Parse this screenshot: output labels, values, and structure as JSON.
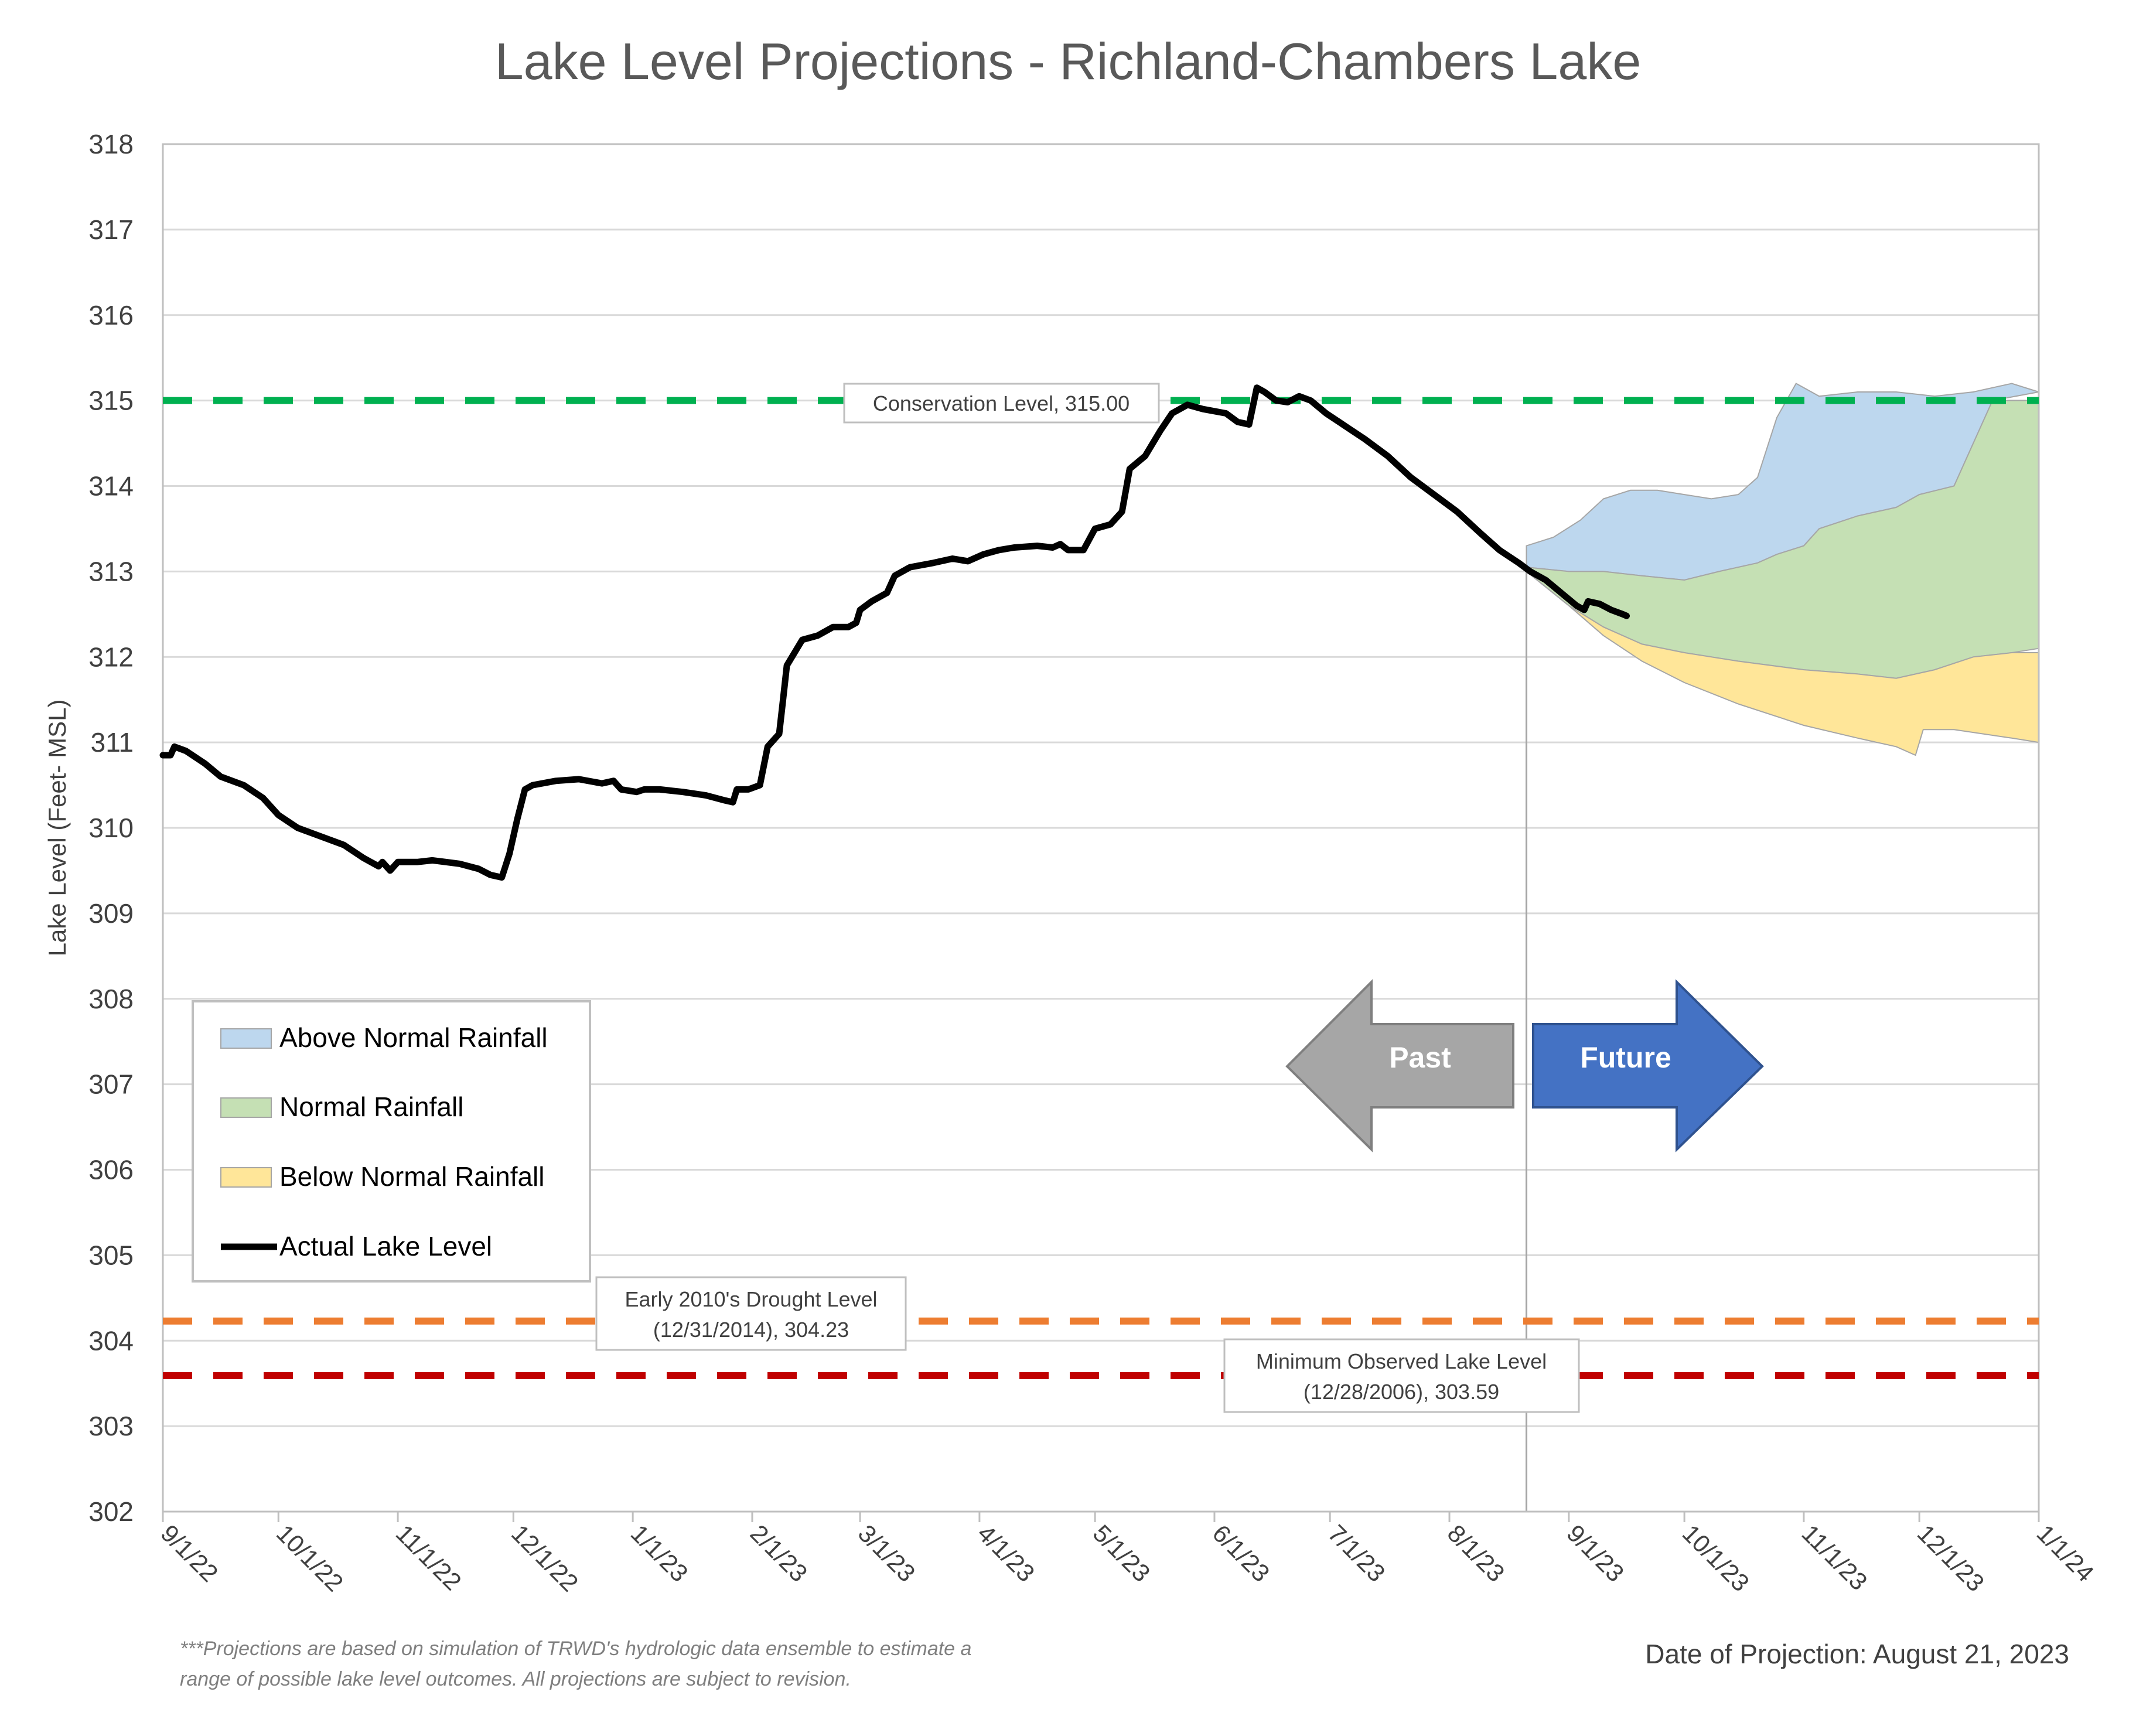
{
  "chart_data": {
    "type": "area",
    "title": "Lake Level Projections - Richland-Chambers Lake",
    "ylabel": "Lake Level (Feet- MSL)",
    "xlabel": "",
    "ylim": [
      302,
      318
    ],
    "y_ticks": [
      "302",
      "303",
      "304",
      "305",
      "306",
      "307",
      "308",
      "309",
      "310",
      "311",
      "312",
      "313",
      "314",
      "315",
      "316",
      "317",
      "318"
    ],
    "x_ticks": [
      "9/1/22",
      "10/1/22",
      "11/1/22",
      "12/1/22",
      "1/1/23",
      "2/1/23",
      "3/1/23",
      "4/1/23",
      "5/1/23",
      "6/1/23",
      "7/1/23",
      "8/1/23",
      "9/1/23",
      "10/1/23",
      "11/1/23",
      "12/1/23",
      "1/1/24"
    ],
    "x_tick_dates": [
      "2022-09-01",
      "2022-10-01",
      "2022-11-01",
      "2022-12-01",
      "2023-01-01",
      "2023-02-01",
      "2023-03-01",
      "2023-04-01",
      "2023-05-01",
      "2023-06-01",
      "2023-07-01",
      "2023-08-01",
      "2023-09-01",
      "2023-10-01",
      "2023-11-01",
      "2023-12-01",
      "2024-01-01"
    ],
    "xlim": [
      "2022-09-01",
      "2024-01-01"
    ],
    "grid": "horizontal",
    "legend_placement": "bottom-left",
    "legend": [
      {
        "label": "Above Normal Rainfall",
        "color": "#bdd7ee",
        "kind": "area"
      },
      {
        "label": "Normal Rainfall",
        "color": "#c5e0b4",
        "kind": "area"
      },
      {
        "label": "Below Normal Rainfall",
        "color": "#ffe699",
        "kind": "area"
      },
      {
        "label": "Actual Lake Level",
        "color": "#000000",
        "kind": "line"
      }
    ],
    "reference_lines": [
      {
        "name": "conservation",
        "value": 315.0,
        "color": "#00b050",
        "label": [
          "Conservation Level, 315.00"
        ]
      },
      {
        "name": "drought",
        "value": 304.23,
        "color": "#ed7d31",
        "label": [
          "Early 2010's Drought Level",
          "(12/31/2014), 304.23"
        ]
      },
      {
        "name": "minimum",
        "value": 303.59,
        "color": "#c00000",
        "label": [
          "Minimum Observed Lake Level",
          "(12/28/2006), 303.59"
        ]
      }
    ],
    "projection_date": "2023-08-21",
    "bands": [
      {
        "name": "Above Normal Rainfall",
        "color": "#bdd7ee",
        "upper": [
          [
            "2023-08-21",
            313.3
          ],
          [
            "2023-08-28",
            313.4
          ],
          [
            "2023-09-04",
            313.6
          ],
          [
            "2023-09-10",
            313.85
          ],
          [
            "2023-09-17",
            313.95
          ],
          [
            "2023-09-24",
            313.95
          ],
          [
            "2023-10-01",
            313.9
          ],
          [
            "2023-10-08",
            313.85
          ],
          [
            "2023-10-15",
            313.9
          ],
          [
            "2023-10-20",
            314.1
          ],
          [
            "2023-10-25",
            314.8
          ],
          [
            "2023-10-30",
            315.2
          ],
          [
            "2023-11-05",
            315.05
          ],
          [
            "2023-11-15",
            315.1
          ],
          [
            "2023-11-25",
            315.1
          ],
          [
            "2023-12-05",
            315.05
          ],
          [
            "2023-12-15",
            315.1
          ],
          [
            "2023-12-25",
            315.2
          ],
          [
            "2024-01-01",
            315.1
          ]
        ],
        "lower": [
          [
            "2023-08-21",
            313.05
          ],
          [
            "2023-09-01",
            313.0
          ],
          [
            "2023-09-10",
            313.0
          ],
          [
            "2023-09-20",
            312.95
          ],
          [
            "2023-10-01",
            312.9
          ],
          [
            "2023-10-10",
            313.0
          ],
          [
            "2023-10-20",
            313.1
          ],
          [
            "2023-10-25",
            313.2
          ],
          [
            "2023-11-01",
            313.3
          ],
          [
            "2023-11-05",
            313.5
          ],
          [
            "2023-11-15",
            313.65
          ],
          [
            "2023-11-25",
            313.75
          ],
          [
            "2023-12-01",
            313.9
          ],
          [
            "2023-12-10",
            314.0
          ],
          [
            "2023-12-15",
            314.5
          ],
          [
            "2023-12-20",
            315.0
          ],
          [
            "2024-01-01",
            315.1
          ]
        ]
      },
      {
        "name": "Normal Rainfall",
        "color": "#c5e0b4",
        "upper": [
          [
            "2023-08-21",
            313.05
          ],
          [
            "2023-09-01",
            313.0
          ],
          [
            "2023-09-10",
            313.0
          ],
          [
            "2023-09-20",
            312.95
          ],
          [
            "2023-10-01",
            312.9
          ],
          [
            "2023-10-10",
            313.0
          ],
          [
            "2023-10-20",
            313.1
          ],
          [
            "2023-10-25",
            313.2
          ],
          [
            "2023-11-01",
            313.3
          ],
          [
            "2023-11-05",
            313.5
          ],
          [
            "2023-11-15",
            313.65
          ],
          [
            "2023-11-25",
            313.75
          ],
          [
            "2023-12-01",
            313.9
          ],
          [
            "2023-12-10",
            314.0
          ],
          [
            "2023-12-15",
            314.5
          ],
          [
            "2023-12-20",
            315.0
          ],
          [
            "2024-01-01",
            315.0
          ]
        ],
        "lower": [
          [
            "2023-08-21",
            313.0
          ],
          [
            "2023-09-01",
            312.6
          ],
          [
            "2023-09-10",
            312.35
          ],
          [
            "2023-09-20",
            312.15
          ],
          [
            "2023-10-01",
            312.05
          ],
          [
            "2023-10-15",
            311.95
          ],
          [
            "2023-11-01",
            311.85
          ],
          [
            "2023-11-15",
            311.8
          ],
          [
            "2023-11-25",
            311.75
          ],
          [
            "2023-12-05",
            311.85
          ],
          [
            "2023-12-15",
            312.0
          ],
          [
            "2023-12-25",
            312.05
          ],
          [
            "2024-01-01",
            312.1
          ]
        ]
      },
      {
        "name": "Below Normal Rainfall",
        "color": "#ffe699",
        "upper": [
          [
            "2023-08-21",
            313.0
          ],
          [
            "2023-09-01",
            312.6
          ],
          [
            "2023-09-10",
            312.35
          ],
          [
            "2023-09-20",
            312.15
          ],
          [
            "2023-10-01",
            312.05
          ],
          [
            "2023-10-15",
            311.95
          ],
          [
            "2023-11-01",
            311.85
          ],
          [
            "2023-11-15",
            311.8
          ],
          [
            "2023-11-25",
            311.75
          ],
          [
            "2023-12-05",
            311.85
          ],
          [
            "2023-12-15",
            312.0
          ],
          [
            "2023-12-25",
            312.05
          ],
          [
            "2024-01-01",
            312.05
          ]
        ],
        "lower": [
          [
            "2023-08-21",
            313.0
          ],
          [
            "2023-09-01",
            312.6
          ],
          [
            "2023-09-10",
            312.25
          ],
          [
            "2023-09-20",
            311.95
          ],
          [
            "2023-10-01",
            311.7
          ],
          [
            "2023-10-15",
            311.45
          ],
          [
            "2023-11-01",
            311.2
          ],
          [
            "2023-11-15",
            311.05
          ],
          [
            "2023-11-25",
            310.95
          ],
          [
            "2023-11-30",
            310.85
          ],
          [
            "2023-12-02",
            311.15
          ],
          [
            "2023-12-10",
            311.15
          ],
          [
            "2023-12-25",
            311.05
          ],
          [
            "2024-01-01",
            311.0
          ]
        ]
      }
    ],
    "series": [
      {
        "name": "Actual Lake Level",
        "color": "#000000",
        "points": [
          [
            "2022-09-01",
            310.85
          ],
          [
            "2022-09-03",
            310.85
          ],
          [
            "2022-09-04",
            310.95
          ],
          [
            "2022-09-07",
            310.9
          ],
          [
            "2022-09-12",
            310.75
          ],
          [
            "2022-09-16",
            310.6
          ],
          [
            "2022-09-22",
            310.5
          ],
          [
            "2022-09-27",
            310.35
          ],
          [
            "2022-10-01",
            310.15
          ],
          [
            "2022-10-06",
            310.0
          ],
          [
            "2022-10-12",
            309.9
          ],
          [
            "2022-10-18",
            309.8
          ],
          [
            "2022-10-23",
            309.65
          ],
          [
            "2022-10-27",
            309.55
          ],
          [
            "2022-10-28",
            309.6
          ],
          [
            "2022-10-30",
            309.5
          ],
          [
            "2022-11-01",
            309.6
          ],
          [
            "2022-11-06",
            309.6
          ],
          [
            "2022-11-10",
            309.62
          ],
          [
            "2022-11-17",
            309.58
          ],
          [
            "2022-11-22",
            309.52
          ],
          [
            "2022-11-25",
            309.45
          ],
          [
            "2022-11-28",
            309.42
          ],
          [
            "2022-11-30",
            309.7
          ],
          [
            "2022-12-02",
            310.1
          ],
          [
            "2022-12-04",
            310.45
          ],
          [
            "2022-12-06",
            310.5
          ],
          [
            "2022-12-12",
            310.55
          ],
          [
            "2022-12-18",
            310.57
          ],
          [
            "2022-12-24",
            310.52
          ],
          [
            "2022-12-27",
            310.55
          ],
          [
            "2022-12-29",
            310.45
          ],
          [
            "2023-01-02",
            310.42
          ],
          [
            "2023-01-04",
            310.45
          ],
          [
            "2023-01-08",
            310.45
          ],
          [
            "2023-01-14",
            310.42
          ],
          [
            "2023-01-20",
            310.38
          ],
          [
            "2023-01-25",
            310.32
          ],
          [
            "2023-01-27",
            310.3
          ],
          [
            "2023-01-28",
            310.45
          ],
          [
            "2023-01-31",
            310.45
          ],
          [
            "2023-02-03",
            310.5
          ],
          [
            "2023-02-05",
            310.95
          ],
          [
            "2023-02-08",
            311.1
          ],
          [
            "2023-02-09",
            311.5
          ],
          [
            "2023-02-10",
            311.9
          ],
          [
            "2023-02-14",
            312.2
          ],
          [
            "2023-02-18",
            312.25
          ],
          [
            "2023-02-22",
            312.35
          ],
          [
            "2023-02-26",
            312.35
          ],
          [
            "2023-02-28",
            312.4
          ],
          [
            "2023-03-01",
            312.55
          ],
          [
            "2023-03-04",
            312.65
          ],
          [
            "2023-03-08",
            312.75
          ],
          [
            "2023-03-10",
            312.95
          ],
          [
            "2023-03-14",
            313.05
          ],
          [
            "2023-03-20",
            313.1
          ],
          [
            "2023-03-25",
            313.15
          ],
          [
            "2023-03-29",
            313.12
          ],
          [
            "2023-04-02",
            313.2
          ],
          [
            "2023-04-06",
            313.25
          ],
          [
            "2023-04-10",
            313.28
          ],
          [
            "2023-04-16",
            313.3
          ],
          [
            "2023-04-20",
            313.28
          ],
          [
            "2023-04-22",
            313.32
          ],
          [
            "2023-04-24",
            313.25
          ],
          [
            "2023-04-28",
            313.25
          ],
          [
            "2023-05-01",
            313.5
          ],
          [
            "2023-05-05",
            313.55
          ],
          [
            "2023-05-08",
            313.7
          ],
          [
            "2023-05-10",
            314.2
          ],
          [
            "2023-05-14",
            314.35
          ],
          [
            "2023-05-18",
            314.65
          ],
          [
            "2023-05-21",
            314.85
          ],
          [
            "2023-05-25",
            314.95
          ],
          [
            "2023-05-29",
            314.9
          ],
          [
            "2023-06-04",
            314.85
          ],
          [
            "2023-06-07",
            314.75
          ],
          [
            "2023-06-10",
            314.72
          ],
          [
            "2023-06-12",
            315.15
          ],
          [
            "2023-06-14",
            315.1
          ],
          [
            "2023-06-17",
            315.0
          ],
          [
            "2023-06-20",
            314.98
          ],
          [
            "2023-06-23",
            315.05
          ],
          [
            "2023-06-26",
            315.0
          ],
          [
            "2023-06-30",
            314.85
          ],
          [
            "2023-07-05",
            314.7
          ],
          [
            "2023-07-10",
            314.55
          ],
          [
            "2023-07-16",
            314.35
          ],
          [
            "2023-07-22",
            314.1
          ],
          [
            "2023-07-28",
            313.9
          ],
          [
            "2023-08-03",
            313.7
          ],
          [
            "2023-08-09",
            313.45
          ],
          [
            "2023-08-14",
            313.25
          ],
          [
            "2023-08-19",
            313.1
          ],
          [
            "2023-08-22",
            313.0
          ],
          [
            "2023-08-26",
            312.9
          ],
          [
            "2023-08-30",
            312.75
          ],
          [
            "2023-09-03",
            312.6
          ],
          [
            "2023-09-05",
            312.55
          ],
          [
            "2023-09-06",
            312.65
          ],
          [
            "2023-09-09",
            312.62
          ],
          [
            "2023-09-12",
            312.55
          ],
          [
            "2023-09-15",
            312.5
          ],
          [
            "2023-09-16",
            312.48
          ]
        ]
      }
    ]
  },
  "legend": {
    "items": [
      {
        "label": "Above Normal Rainfall"
      },
      {
        "label": "Normal Rainfall"
      },
      {
        "label": "Below Normal Rainfall"
      },
      {
        "label": "Actual Lake Level"
      }
    ]
  },
  "arrows": {
    "past_label": "Past",
    "future_label": "Future"
  },
  "footnote": {
    "line1": "***Projections are based on simulation of TRWD's hydrologic data ensemble to estimate a",
    "line2": "range of possible lake level outcomes.  All projections are subject to revision."
  },
  "projection_note": "Date of Projection: August 21, 2023"
}
